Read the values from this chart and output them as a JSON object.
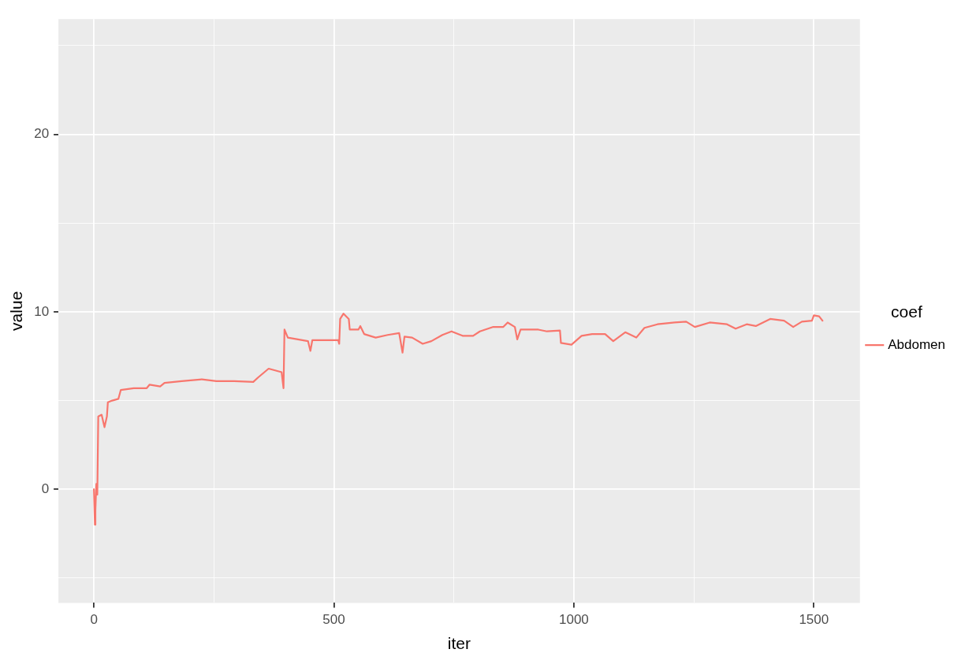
{
  "chart_data": {
    "type": "line",
    "xlabel": "iter",
    "ylabel": "value",
    "legend_title": "coef",
    "legend": "right",
    "grid": true,
    "marker": "none",
    "line_style": "solid",
    "xlim": [
      -74,
      1596
    ],
    "ylim": [
      -6.4,
      26.5
    ],
    "xticks": [
      0,
      {
        "value": 250,
        "label": null
      },
      500,
      {
        "value": 750,
        "label": null
      },
      1000,
      {
        "value": 1250,
        "label": null
      },
      1500
    ],
    "yticks": [
      {
        "value": -5,
        "label": null
      },
      0,
      {
        "value": 5,
        "label": null
      },
      10,
      {
        "value": 15,
        "label": null
      },
      20,
      {
        "value": 25,
        "label": null
      }
    ],
    "series": [
      {
        "name": "Abdomen",
        "color": "#f8766d",
        "x": [
          0,
          2,
          3,
          5,
          7,
          9,
          16,
          22,
          27,
          29,
          38,
          51,
          56,
          83,
          110,
          116,
          138,
          147,
          183,
          225,
          255,
          292,
          332,
          342,
          364,
          391,
          395,
          397,
          404,
          446,
          451,
          455,
          509,
          511,
          513,
          520,
          531,
          533,
          551,
          555,
          563,
          587,
          612,
          636,
          643,
          647,
          663,
          685,
          703,
          726,
          745,
          768,
          790,
          804,
          832,
          853,
          862,
          877,
          882,
          889,
          926,
          944,
          971,
          973,
          995,
          1016,
          1038,
          1065,
          1082,
          1107,
          1130,
          1147,
          1174,
          1210,
          1234,
          1252,
          1283,
          1319,
          1337,
          1360,
          1379,
          1409,
          1438,
          1457,
          1475,
          1496,
          1500,
          1511,
          1518
        ],
        "values": [
          0,
          -2.0,
          -1.2,
          0.3,
          -0.3,
          4.1,
          4.2,
          3.5,
          4.1,
          4.9,
          5.0,
          5.1,
          5.6,
          5.7,
          5.7,
          5.9,
          5.8,
          6.0,
          6.1,
          6.2,
          6.1,
          6.1,
          6.05,
          6.3,
          6.8,
          6.6,
          5.7,
          9.0,
          8.55,
          8.35,
          7.8,
          8.4,
          8.4,
          8.2,
          9.6,
          9.9,
          9.6,
          9.0,
          9.0,
          9.2,
          8.75,
          8.55,
          8.7,
          8.8,
          7.7,
          8.6,
          8.55,
          8.2,
          8.35,
          8.7,
          8.9,
          8.65,
          8.65,
          8.9,
          9.15,
          9.15,
          9.4,
          9.15,
          8.45,
          9.0,
          9.0,
          8.9,
          8.95,
          8.25,
          8.15,
          8.65,
          8.75,
          8.75,
          8.35,
          8.85,
          8.55,
          9.1,
          9.3,
          9.4,
          9.45,
          9.15,
          9.4,
          9.3,
          9.05,
          9.3,
          9.2,
          9.6,
          9.5,
          9.15,
          9.45,
          9.5,
          9.8,
          9.75,
          9.5
        ]
      }
    ]
  }
}
